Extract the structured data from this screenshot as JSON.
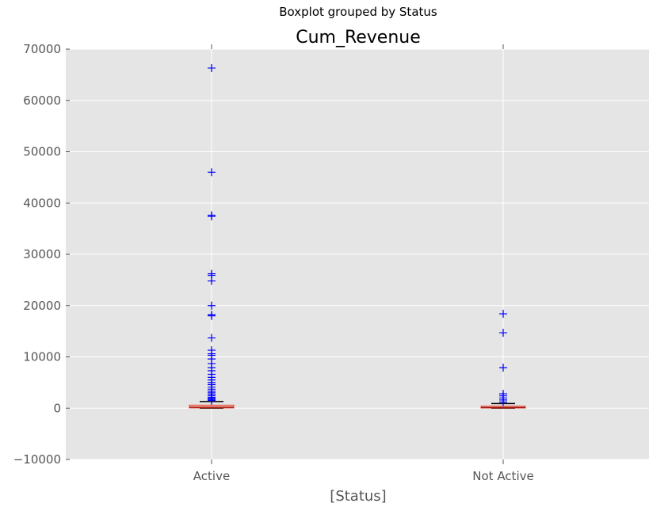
{
  "figure": {
    "suptitle": "Boxplot grouped by Status",
    "title": "Cum_Revenue"
  },
  "chart_data": {
    "type": "boxplot",
    "suptitle": "Boxplot grouped by Status",
    "title": "Cum_Revenue",
    "xlabel": "[Status]",
    "ylabel": "",
    "ylim": [
      -10000,
      70000
    ],
    "yticks": [
      -10000,
      0,
      10000,
      20000,
      30000,
      40000,
      50000,
      60000,
      70000
    ],
    "ytick_labels": [
      "−10000",
      "0",
      "10000",
      "20000",
      "30000",
      "40000",
      "50000",
      "60000",
      "70000"
    ],
    "grid": true,
    "legend": "none",
    "colors": {
      "background": "#e5e5e5",
      "grid": "#ffffff",
      "box": "#e24a33",
      "box_fill": "#f4b2a6",
      "median": "#8b0000",
      "whisker": "#000000",
      "outlier": "#0000ff"
    },
    "categories": [
      "Active",
      "Not Active"
    ],
    "boxes": [
      {
        "category": "Active",
        "whislo": 0,
        "q1": 50,
        "median": 200,
        "q3": 600,
        "whishi": 1300,
        "fliers": [
          66300,
          46000,
          37600,
          37400,
          26200,
          25900,
          24800,
          20000,
          18200,
          18000,
          13700,
          11300,
          10600,
          10300,
          9600,
          8700,
          7900,
          7300,
          6600,
          6000,
          5500,
          5000,
          4600,
          4100,
          3700,
          3300,
          3000,
          2700,
          2400,
          2100,
          1900,
          1700,
          1500
        ]
      },
      {
        "category": "Not Active",
        "whislo": 0,
        "q1": 30,
        "median": 150,
        "q3": 400,
        "whishi": 900,
        "fliers": [
          18400,
          14700,
          7900,
          2800,
          2400,
          2000,
          1600,
          1200
        ]
      }
    ]
  }
}
